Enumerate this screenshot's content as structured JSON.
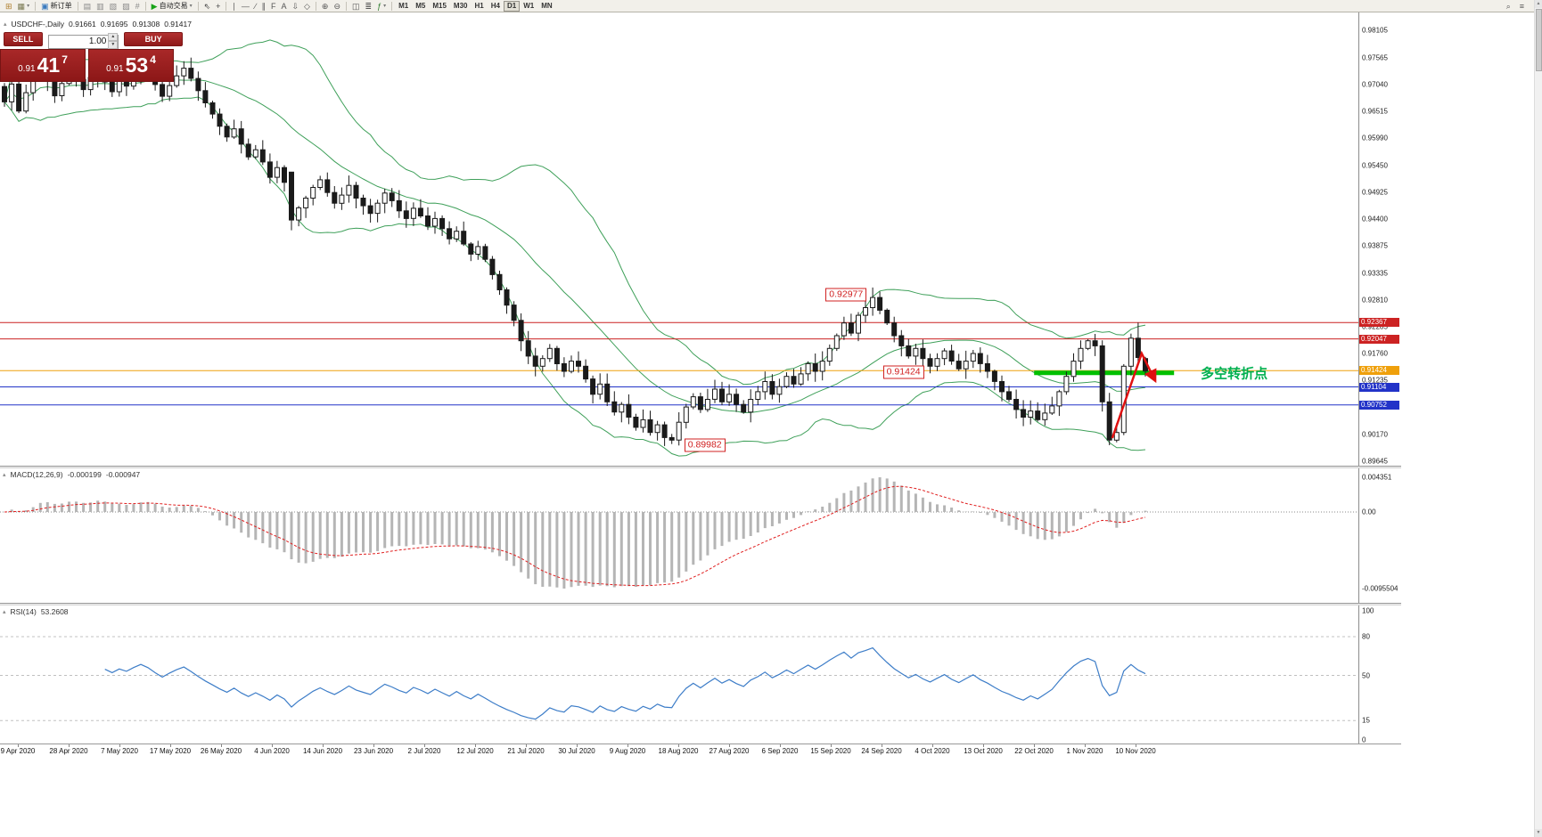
{
  "toolbar": {
    "items": [
      {
        "name": "new-chart-icon",
        "glyph": "⊞",
        "color": "#b08030"
      },
      {
        "name": "profiles-icon",
        "glyph": "▦",
        "color": "#7a7a52",
        "caret": true
      },
      {
        "type": "sep"
      },
      {
        "name": "new-order-button",
        "glyph": "▣",
        "label": "新订单",
        "color": "#3a7abf"
      },
      {
        "type": "sep"
      },
      {
        "name": "market-watch-icon",
        "glyph": "▤",
        "color": "#888888"
      },
      {
        "name": "data-window-icon",
        "glyph": "▥",
        "color": "#888888"
      },
      {
        "name": "navigator-icon",
        "glyph": "▧",
        "color": "#888888"
      },
      {
        "name": "terminal-icon",
        "glyph": "▨",
        "color": "#888888"
      },
      {
        "name": "strategy-tester-icon",
        "glyph": "#",
        "color": "#888888"
      },
      {
        "type": "sep"
      },
      {
        "name": "autotrading-button",
        "glyph": "▶",
        "label": "自动交易",
        "color": "#17a317",
        "caret": true
      },
      {
        "type": "sep"
      },
      {
        "name": "cursor-icon",
        "glyph": "⇖",
        "color": "#444444"
      },
      {
        "name": "crosshair-icon",
        "glyph": "+",
        "color": "#444444"
      },
      {
        "type": "sep"
      },
      {
        "name": "vertical-line-icon",
        "glyph": "∣",
        "color": "#555555"
      },
      {
        "name": "horizontal-line-icon",
        "glyph": "―",
        "color": "#555555"
      },
      {
        "name": "trendline-icon",
        "glyph": "∕",
        "color": "#555555"
      },
      {
        "name": "channel-icon",
        "glyph": "∥",
        "color": "#555555"
      },
      {
        "name": "fibonacci-icon",
        "glyph": "F",
        "color": "#555555"
      },
      {
        "name": "text-tool-icon",
        "glyph": "A",
        "color": "#555555"
      },
      {
        "name": "arrows-tool-icon",
        "glyph": "⇩",
        "color": "#555555"
      },
      {
        "name": "shapes-icon",
        "glyph": "◇",
        "color": "#555555"
      },
      {
        "type": "sep"
      },
      {
        "name": "zoom-in-icon",
        "glyph": "⊕",
        "color": "#555555"
      },
      {
        "name": "zoom-out-icon",
        "glyph": "⊖",
        "color": "#555555"
      },
      {
        "type": "sep"
      },
      {
        "name": "tile-windows-icon",
        "glyph": "◫",
        "color": "#555555"
      },
      {
        "name": "grid-icon",
        "glyph": "≣",
        "color": "#555555"
      },
      {
        "name": "indicators-icon",
        "glyph": "ƒ",
        "color": "#2a7a2a",
        "caret": true
      },
      {
        "type": "sep"
      }
    ],
    "timeframes": [
      "M1",
      "M5",
      "M15",
      "M30",
      "H1",
      "H4",
      "D1",
      "W1",
      "MN"
    ],
    "active_timeframe": "D1",
    "right_icons": [
      {
        "name": "search-icon",
        "glyph": "⌕"
      },
      {
        "name": "menu-icon",
        "glyph": "≡"
      }
    ]
  },
  "trade_panel": {
    "sell_label": "SELL",
    "buy_label": "BUY",
    "lot": "1.00",
    "sell_price": {
      "prefix": "0.91",
      "big": "41",
      "sup": "7"
    },
    "buy_price": {
      "prefix": "0.91",
      "big": "53",
      "sup": "4"
    }
  },
  "chart_data": {
    "type": "candlestick",
    "symbol": "USDCHF-",
    "period": "Daily",
    "info": {
      "symbol_period": "USDCHF-,Daily",
      "open": "0.91661",
      "high": "0.91695",
      "low": "0.91308",
      "close": "0.91417"
    },
    "price_ticks": [
      "0.98105",
      "0.97565",
      "0.97040",
      "0.96515",
      "0.95990",
      "0.95450",
      "0.94925",
      "0.94400",
      "0.93875",
      "0.93335",
      "0.92810",
      "0.92285",
      "0.91760",
      "0.91235",
      "0.90170",
      "0.89645"
    ],
    "candles": {
      "closes": [
        0.967,
        0.9705,
        0.9652,
        0.9688,
        0.9722,
        0.9748,
        0.9712,
        0.9682,
        0.9706,
        0.9731,
        0.9714,
        0.9694,
        0.9718,
        0.9739,
        0.9709,
        0.969,
        0.9713,
        0.9701,
        0.9724,
        0.9744,
        0.9729,
        0.9704,
        0.9681,
        0.9702,
        0.9721,
        0.9736,
        0.9716,
        0.9692,
        0.9668,
        0.9646,
        0.9622,
        0.9601,
        0.9617,
        0.9587,
        0.9562,
        0.9576,
        0.9552,
        0.9522,
        0.9541,
        0.9512,
        0.9438,
        0.9462,
        0.9481,
        0.9502,
        0.9517,
        0.9492,
        0.9471,
        0.9487,
        0.9506,
        0.9481,
        0.9466,
        0.9451,
        0.9471,
        0.9491,
        0.9476,
        0.9456,
        0.9441,
        0.9461,
        0.9446,
        0.9426,
        0.9441,
        0.9421,
        0.9401,
        0.9416,
        0.9391,
        0.9371,
        0.9386,
        0.9361,
        0.9331,
        0.9301,
        0.9271,
        0.9241,
        0.9201,
        0.9171,
        0.9151,
        0.9166,
        0.9186,
        0.9156,
        0.9141,
        0.9161,
        0.9151,
        0.9126,
        0.9096,
        0.9116,
        0.9081,
        0.9061,
        0.9076,
        0.9051,
        0.9031,
        0.9046,
        0.9021,
        0.9036,
        0.9011,
        0.9006,
        0.9041,
        0.9071,
        0.9091,
        0.9066,
        0.9086,
        0.9106,
        0.9081,
        0.9096,
        0.9076,
        0.9061,
        0.9086,
        0.9101,
        0.9121,
        0.9096,
        0.9111,
        0.9131,
        0.9116,
        0.9136,
        0.9156,
        0.9141,
        0.9161,
        0.9186,
        0.9211,
        0.9236,
        0.9216,
        0.9251,
        0.9266,
        0.9286,
        0.9261,
        0.9236,
        0.9211,
        0.9191,
        0.9171,
        0.9186,
        0.9166,
        0.9151,
        0.9166,
        0.9181,
        0.9161,
        0.9146,
        0.9161,
        0.9176,
        0.9156,
        0.9141,
        0.9121,
        0.9101,
        0.9086,
        0.9066,
        0.9051,
        0.9063,
        0.9046,
        0.9059,
        0.9073,
        0.9101,
        0.9131,
        0.9161,
        0.9186,
        0.9201,
        0.9191,
        0.9081,
        0.9006,
        0.9021,
        0.9151,
        0.9206,
        0.9168,
        0.91417
      ],
      "overrides": {
        "40": {
          "o": 0.9532,
          "l": 0.9418
        },
        "93": {
          "l": 0.89982
        },
        "122": {
          "h": 0.92977
        },
        "154": {
          "l": 0.8996
        },
        "158": {
          "h": 0.92367
        },
        "159": {
          "o": 0.91661,
          "h": 0.91695,
          "l": 0.91308,
          "c": 0.91417
        }
      }
    },
    "bollinger": {
      "period": 20,
      "deviation": 2
    },
    "levels": [
      {
        "price": 0.92367,
        "label": "0.92367",
        "color": "#cc2222"
      },
      {
        "price": 0.92047,
        "label": "0.92047",
        "color": "#cc2222"
      },
      {
        "price": 0.91424,
        "label": "0.91424",
        "color": "#efa00b"
      },
      {
        "price": 0.91104,
        "label": "0.91104",
        "color": "#2233c8"
      },
      {
        "price": 0.90752,
        "label": "0.90752",
        "color": "#2233c8"
      }
    ],
    "annotations": [
      {
        "text": "0.92977",
        "index": 117.3,
        "price": 0.9291
      },
      {
        "text": "0.91424",
        "index": 125.3,
        "price": 0.914
      },
      {
        "text": "0.89982",
        "index": 97.6,
        "price": 0.8996
      }
    ],
    "turning_point": {
      "label": "多空转折点",
      "price": 0.9138,
      "from_index": 143.5,
      "to_index": 163,
      "color": "#00c000",
      "label_color": "#00b050"
    },
    "arrow": {
      "points": [
        [
          154.4,
          0.901
        ],
        [
          158.5,
          0.9176
        ],
        [
          160.4,
          0.9122
        ]
      ],
      "color": "#e01010"
    },
    "macd": {
      "label": "MACD(12,26,9)",
      "value": "-0.000199",
      "signal_value": "-0.000947",
      "axis": [
        "0.004351",
        "0.00",
        "-0.0095504"
      ],
      "fast": 12,
      "slow": 26,
      "signal": 9
    },
    "rsi": {
      "label": "RSI(14)",
      "value": "53.2608",
      "axis": [
        100,
        80,
        50,
        15,
        0
      ],
      "levels": [
        80,
        50,
        15
      ],
      "period": 14
    },
    "dates": [
      "9 Apr 2020",
      "28 Apr 2020",
      "7 May 2020",
      "17 May 2020",
      "26 May 2020",
      "4 Jun 2020",
      "14 Jun 2020",
      "23 Jun 2020",
      "2 Jul 2020",
      "12 Jul 2020",
      "21 Jul 2020",
      "30 Jul 2020",
      "9 Aug 2020",
      "18 Aug 2020",
      "27 Aug 2020",
      "6 Sep 2020",
      "15 Sep 2020",
      "24 Sep 2020",
      "4 Oct 2020",
      "13 Oct 2020",
      "22 Oct 2020",
      "1 Nov 2020",
      "10 Nov 2020"
    ],
    "colors": {
      "bollinger": "#3fa05a",
      "candle": "#1a1a1a",
      "macd_hist": "#b5b5b5",
      "macd_signal": "#e02020",
      "rsi_line": "#3d7dc8"
    }
  }
}
